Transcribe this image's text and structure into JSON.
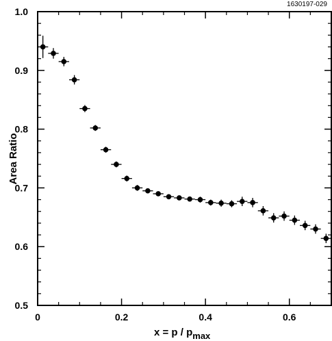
{
  "figure_id": "1630197-029",
  "chart_data": {
    "type": "scatter",
    "title": "",
    "xlabel_main": "x = p / p",
    "xlabel_sub": "max",
    "ylabel": "Area  Ratio",
    "xlim": [
      0,
      0.7
    ],
    "ylim": [
      0.5,
      1.0
    ],
    "grid": false,
    "x_ticks": [
      0,
      0.2,
      0.4,
      0.6
    ],
    "x_tick_labels": [
      "0",
      "0.2",
      "0.4",
      "0.6"
    ],
    "y_ticks": [
      0.5,
      0.6,
      0.7,
      0.8,
      0.9,
      1.0
    ],
    "y_tick_labels": [
      "0.5",
      "0.6",
      "0.7",
      "0.8",
      "0.9",
      "1.0"
    ],
    "series": [
      {
        "x": [
          0.0125,
          0.0375,
          0.0625,
          0.0875,
          0.1125,
          0.1375,
          0.1625,
          0.1875,
          0.2125,
          0.2375,
          0.2625,
          0.2875,
          0.3125,
          0.3375,
          0.3625,
          0.3875,
          0.4125,
          0.4375,
          0.4625,
          0.4875,
          0.5125,
          0.5375,
          0.5625,
          0.5875,
          0.6125,
          0.6375,
          0.6625,
          0.6875
        ],
        "y": [
          0.94,
          0.929,
          0.915,
          0.884,
          0.835,
          0.802,
          0.765,
          0.74,
          0.716,
          0.7,
          0.695,
          0.69,
          0.685,
          0.683,
          0.681,
          0.68,
          0.675,
          0.674,
          0.673,
          0.677,
          0.675,
          0.661,
          0.649,
          0.652,
          0.645,
          0.636,
          0.63,
          0.614
        ],
        "yerr": [
          0.019,
          0.009,
          0.008,
          0.008,
          0.006,
          0.005,
          0.005,
          0.005,
          0.005,
          0.005,
          0.004,
          0.004,
          0.004,
          0.004,
          0.004,
          0.005,
          0.005,
          0.006,
          0.006,
          0.008,
          0.008,
          0.008,
          0.008,
          0.008,
          0.008,
          0.008,
          0.008,
          0.008
        ],
        "xerr": 0.0125
      }
    ]
  }
}
